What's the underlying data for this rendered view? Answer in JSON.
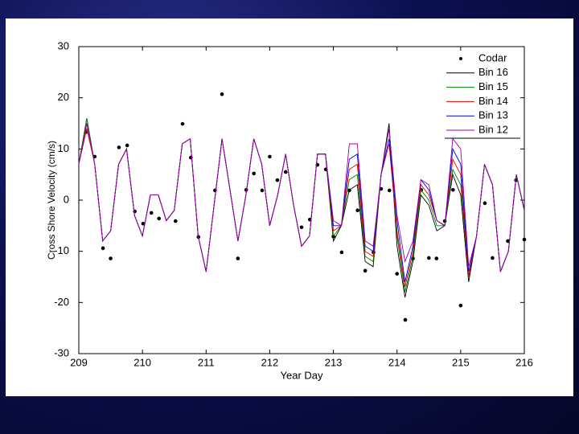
{
  "chart_data": {
    "type": "line",
    "xlabel": "Year Day",
    "ylabel": "Cross Shore Velocity (cm/s)",
    "xlim": [
      209,
      216
    ],
    "xticks": [
      209,
      210,
      211,
      212,
      213,
      214,
      215,
      216
    ],
    "ylim": [
      -30,
      30
    ],
    "yticks": [
      -30,
      -20,
      -10,
      0,
      10,
      20,
      30
    ],
    "x": [
      209,
      209.125,
      209.25,
      209.375,
      209.5,
      209.625,
      209.75,
      209.875,
      210,
      210.125,
      210.25,
      210.375,
      210.5,
      210.625,
      210.75,
      210.875,
      211,
      211.125,
      211.25,
      211.375,
      211.5,
      211.625,
      211.75,
      211.875,
      212,
      212.125,
      212.25,
      212.375,
      212.5,
      212.625,
      212.75,
      212.875,
      213,
      213.125,
      213.25,
      213.375,
      213.5,
      213.625,
      213.75,
      213.875,
      214,
      214.125,
      214.25,
      214.375,
      214.5,
      214.625,
      214.75,
      214.875,
      215,
      215.125,
      215.25,
      215.375,
      215.5,
      215.625,
      215.75,
      215.875,
      216
    ],
    "legend": "upper right",
    "series": [
      {
        "name": "Codar",
        "kind": "scatter",
        "color": "#000000",
        "x": [
          209.11,
          209.25,
          209.38,
          209.5,
          209.63,
          209.76,
          209.88,
          210.01,
          210.14,
          210.26,
          210.52,
          210.63,
          210.76,
          210.88,
          211.14,
          211.25,
          211.5,
          211.63,
          211.75,
          211.88,
          212.0,
          212.12,
          212.25,
          212.5,
          212.63,
          212.75,
          212.88,
          213.0,
          213.13,
          213.25,
          213.38,
          213.5,
          213.63,
          213.75,
          213.88,
          214.0,
          214.13,
          214.25,
          214.38,
          214.5,
          214.62,
          214.75,
          214.88,
          215.0,
          215.38,
          215.5,
          215.74,
          215.87,
          216.0
        ],
        "values": [
          13.3,
          8.5,
          -9.4,
          -11.4,
          10.3,
          10.7,
          -2.2,
          -4.6,
          -2.5,
          -3.6,
          -4.1,
          14.9,
          8.3,
          -7.2,
          1.9,
          20.7,
          -11.4,
          2.0,
          5.2,
          1.9,
          8.5,
          3.9,
          5.5,
          -5.3,
          -3.8,
          6.9,
          6.0,
          -7.1,
          -10.2,
          1.9,
          -2.0,
          -13.8,
          -10.2,
          2.2,
          1.9,
          -14.4,
          -23.4,
          -11.4,
          2.0,
          -11.3,
          -11.4,
          -4.1,
          2.0,
          -20.6,
          -0.6,
          -11.3,
          -8.0,
          3.9,
          -7.7
        ]
      },
      {
        "name": "Bin 16",
        "color": "#000000",
        "values": [
          7,
          16,
          7,
          -8,
          -6,
          7,
          10,
          -3,
          -7,
          1,
          1,
          -4,
          -2,
          11,
          12,
          -7,
          -14,
          -1,
          12,
          2,
          -8,
          1,
          12,
          7,
          -5,
          1,
          9,
          -1,
          -9,
          -7,
          9,
          9,
          -8,
          -5,
          2,
          3,
          -12,
          -13,
          5,
          15,
          -9,
          -19,
          -12,
          1,
          -1,
          -6,
          -5,
          5,
          1,
          -16,
          -7,
          7,
          3,
          -14,
          -10,
          5,
          -2
        ]
      },
      {
        "name": "Bin 15",
        "color": "#008000",
        "values": [
          7,
          16,
          7,
          -8,
          -6,
          7,
          10,
          -3,
          -7,
          1,
          1,
          -4,
          -2,
          11,
          12,
          -7,
          -14,
          -1,
          12,
          2,
          -8,
          1,
          12,
          7,
          -5,
          1,
          9,
          -1,
          -9,
          -7,
          9,
          9,
          -7,
          -5,
          4,
          5,
          -11,
          -12,
          5,
          14,
          -7,
          -18,
          -11,
          2,
          0,
          -5,
          -5,
          6,
          3,
          -15,
          -7,
          7,
          3,
          -14,
          -10,
          5,
          -2
        ]
      },
      {
        "name": "Bin 14",
        "color": "#e00000",
        "values": [
          7,
          14,
          7,
          -8,
          -6,
          7,
          10,
          -3,
          -7,
          1,
          1,
          -4,
          -2,
          11,
          12,
          -7,
          -14,
          -1,
          12,
          2,
          -8,
          1,
          12,
          7,
          -5,
          1,
          9,
          -1,
          -9,
          -7,
          9,
          9,
          -6,
          -5,
          6,
          7,
          -10,
          -11,
          5,
          11,
          -6,
          -17,
          -10,
          3,
          1,
          -4,
          -5,
          8,
          5,
          -15,
          -7,
          7,
          3,
          -14,
          -10,
          5,
          -2
        ]
      },
      {
        "name": "Bin 13",
        "color": "#0000e0",
        "values": [
          7,
          15,
          7,
          -8,
          -6,
          7,
          10,
          -3,
          -7,
          1,
          1,
          -4,
          -2,
          11,
          12,
          -7,
          -14,
          -1,
          12,
          2,
          -8,
          1,
          12,
          7,
          -5,
          1,
          9,
          -1,
          -9,
          -7,
          9,
          9,
          -5,
          -5,
          8,
          9,
          -9,
          -10,
          5,
          12,
          -4,
          -16,
          -9,
          4,
          2,
          -4,
          -5,
          10,
          7,
          -14,
          -7,
          7,
          3,
          -14,
          -10,
          5,
          -2
        ]
      },
      {
        "name": "Bin 12",
        "color": "#a000a0",
        "values": [
          7,
          15,
          7,
          -8,
          -6,
          7,
          10,
          -3,
          -7,
          1,
          1,
          -4,
          -2,
          11,
          12,
          -7,
          -14,
          -1,
          12,
          2,
          -8,
          1,
          12,
          7,
          -5,
          1,
          9,
          -1,
          -9,
          -7,
          9,
          9,
          -4,
          -5,
          11,
          11,
          -8,
          -9,
          5,
          14,
          -3,
          -12,
          -8,
          4,
          3,
          -4,
          -5,
          12,
          10,
          -13,
          -7,
          7,
          3,
          -14,
          -10,
          5,
          -2
        ]
      }
    ]
  }
}
